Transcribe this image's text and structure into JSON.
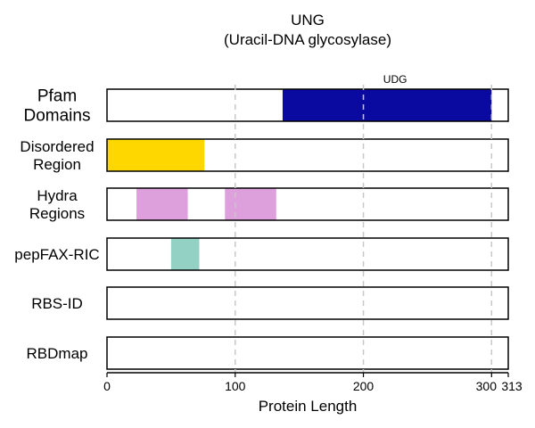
{
  "chart_data": {
    "type": "bar",
    "title": "UNG",
    "subtitle": "(Uracil-DNA glycosylase)",
    "xlabel": "Protein Length",
    "xlim": [
      0,
      313
    ],
    "xticks": [
      0,
      100,
      200,
      300,
      313
    ],
    "grid": true,
    "tracks": [
      {
        "label": "Pfam\nDomains",
        "segments": [
          {
            "start": 137,
            "end": 300,
            "color": "#0a0aa0",
            "label": "UDG"
          }
        ]
      },
      {
        "label": "Disordered\nRegion",
        "segments": [
          {
            "start": 0,
            "end": 76,
            "color": "#ffd700"
          }
        ]
      },
      {
        "label": "Hydra\nRegions",
        "segments": [
          {
            "start": 23,
            "end": 63,
            "color": "#dda0dd"
          },
          {
            "start": 92,
            "end": 132,
            "color": "#dda0dd"
          }
        ]
      },
      {
        "label": "pepFAX-RIC",
        "segments": [
          {
            "start": 50,
            "end": 72,
            "color": "#93d1c5"
          }
        ]
      },
      {
        "label": "RBS-ID",
        "segments": []
      },
      {
        "label": "RBDmap",
        "segments": []
      }
    ]
  }
}
